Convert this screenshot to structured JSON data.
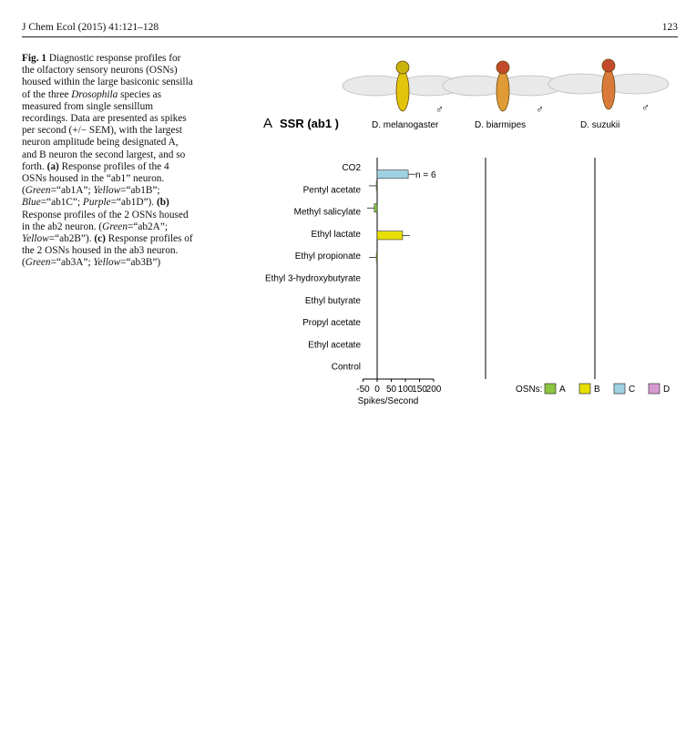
{
  "header": {
    "journal": "J Chem Ecol (2015) 41:121–128",
    "page": "123"
  },
  "caption": {
    "label": "Fig. 1",
    "parts": [
      {
        "t": "Diagnostic response profiles for the olfactory sensory neurons (OSNs) housed within the large basiconic sensilla of the three "
      },
      {
        "t": "Drosophila",
        "i": true
      },
      {
        "t": " species as measured from single sensillum recordings. Data are presented as spikes per second (+/− SEM), with the largest neuron amplitude being designated A, and B neuron the second largest, and so forth. "
      },
      {
        "t": "(a)",
        "b": true
      },
      {
        "t": " Response profiles of the 4 OSNs housed in the “ab1” neuron. ("
      },
      {
        "t": "Green",
        "i": true
      },
      {
        "t": "=“ab1A”; "
      },
      {
        "t": "Yellow",
        "i": true
      },
      {
        "t": "=“ab1B”; "
      },
      {
        "t": "Blue",
        "i": true
      },
      {
        "t": "=“ab1C”; "
      },
      {
        "t": "Purple",
        "i": true
      },
      {
        "t": "=“ab1D”). "
      },
      {
        "t": "(b)",
        "b": true
      },
      {
        "t": " Response profiles of the 2 OSNs housed in the ab2 neuron. ("
      },
      {
        "t": "Green",
        "i": true
      },
      {
        "t": "=“ab2A”; "
      },
      {
        "t": "Yellow",
        "i": true
      },
      {
        "t": "=“ab2B”). "
      },
      {
        "t": "(c)",
        "b": true
      },
      {
        "t": " Response profiles of the 2 OSNs housed in the ab3 neuron. ("
      },
      {
        "t": "Green",
        "i": true
      },
      {
        "t": "=“ab3A”; "
      },
      {
        "t": "Yellow",
        "i": true
      },
      {
        "t": "=“ab3B”)"
      }
    ]
  },
  "flies": {
    "male_symbol": "♂"
  },
  "colors": {
    "A": "#8cc63f",
    "B": "#e7df00",
    "C": "#9fd1e3",
    "D": "#d79ad0"
  },
  "chart_data": [
    {
      "type": "bar",
      "panel": "A",
      "title": "SSR (ab1 )",
      "species": [
        "D. melanogaster",
        "D. biarmipes",
        "D. suzukii"
      ],
      "categories": [
        "CO2",
        "Pentyl acetate",
        "Methyl salicylate",
        "Ethyl lactate",
        "Ethyl propionate",
        "Ethyl 3-hydroxybutyrate",
        "Ethyl butyrate",
        "Propyl acetate",
        "Ethyl acetate",
        "Control"
      ],
      "xlabel": "Spikes/Second",
      "xticks": [
        "-50",
        "0",
        "50",
        "100",
        "150",
        "200"
      ],
      "xlim": [
        -50,
        200
      ],
      "annotation": "n = 6",
      "legend": {
        "title": "OSNs:",
        "items": [
          "A",
          "B",
          "C",
          "D"
        ]
      },
      "neurons": [
        "A",
        "B",
        "C",
        "D"
      ],
      "series": [
        {
          "values": {
            "A": [
              0,
              -3,
              -10,
              0,
              0,
              0,
              0,
              0,
              0,
              0
            ],
            "B": [
              0,
              0,
              0,
              90,
              -3,
              0,
              0,
              0,
              0,
              0
            ],
            "C": [
              110,
              0,
              0,
              0,
              0,
              0,
              0,
              0,
              0,
              0
            ],
            "D": [
              0,
              0,
              0,
              0,
              0,
              0,
              0,
              0,
              0,
              0
            ]
          }
        },
        {
          "values": {
            "A": [
              0,
              0,
              0,
              0,
              0,
              0,
              0,
              0,
              0,
              0
            ],
            "B": [
              0,
              0,
              0,
              0,
              0,
              0,
              0,
              0,
              0,
              0
            ],
            "C": [
              0,
              0,
              0,
              0,
              0,
              0,
              0,
              0,
              0,
              0
            ],
            "D": [
              0,
              0,
              0,
              0,
              0,
              0,
              0,
              0,
              0,
              0
            ]
          }
        },
        {
          "values": {
            "A": [
              0,
              0,
              0,
              0,
              0,
              0,
              0,
              0,
              0,
              0
            ],
            "B": [
              0,
              0,
              0,
              0,
              0,
              0,
              0,
              0,
              0,
              0
            ],
            "C": [
              0,
              0,
              0,
              0,
              0,
              0,
              0,
              0,
              0,
              0
            ],
            "D": [
              0,
              0,
              0,
              0,
              0,
              0,
              0,
              0,
              0,
              0
            ]
          }
        }
      ]
    }
  ]
}
